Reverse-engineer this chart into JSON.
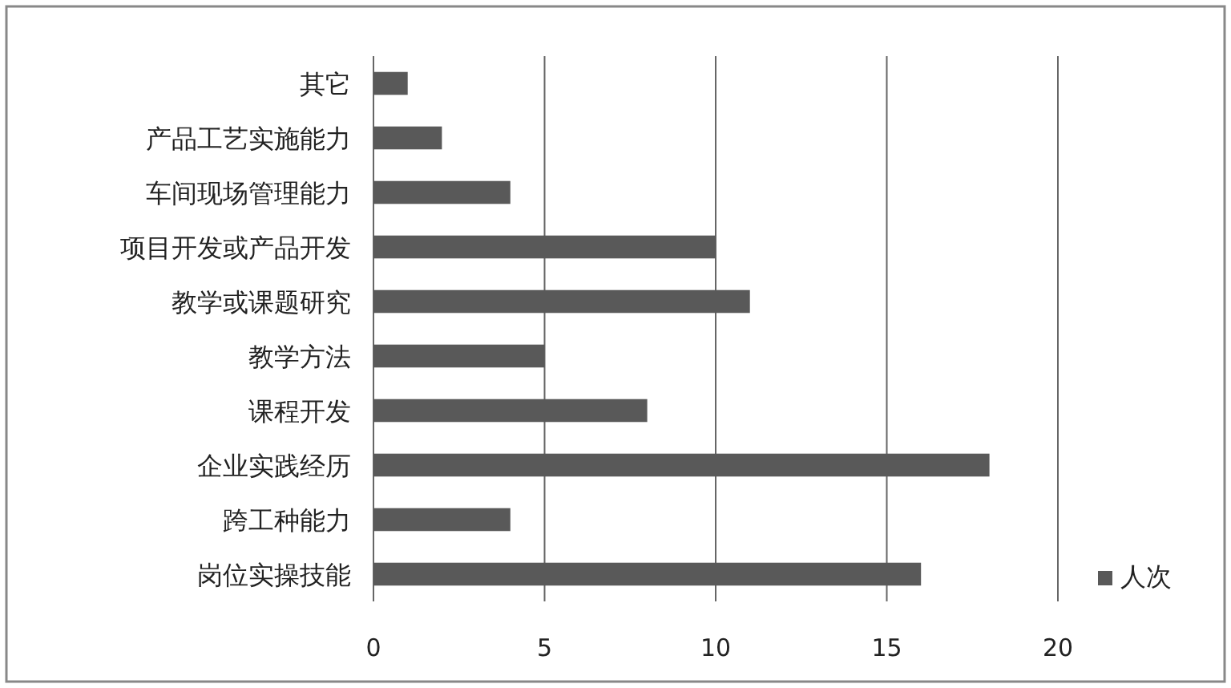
{
  "chart_data": {
    "type": "bar",
    "orientation": "horizontal",
    "categories": [
      "其它",
      "产品工艺实施能力",
      "车间现场管理能力",
      "项目开发或产品开发",
      "教学或课题研究",
      "教学方法",
      "课程开发",
      "企业实践经历",
      "跨工种能力",
      "岗位实操技能"
    ],
    "series": [
      {
        "name": "人次",
        "color": "#595959",
        "values": [
          1,
          2,
          4,
          10,
          11,
          5,
          8,
          18,
          4,
          16
        ]
      }
    ],
    "xlim": [
      0,
      20
    ],
    "xticks": [
      0,
      5,
      10,
      15,
      20
    ],
    "grid": "x",
    "legend": "bottom right"
  }
}
